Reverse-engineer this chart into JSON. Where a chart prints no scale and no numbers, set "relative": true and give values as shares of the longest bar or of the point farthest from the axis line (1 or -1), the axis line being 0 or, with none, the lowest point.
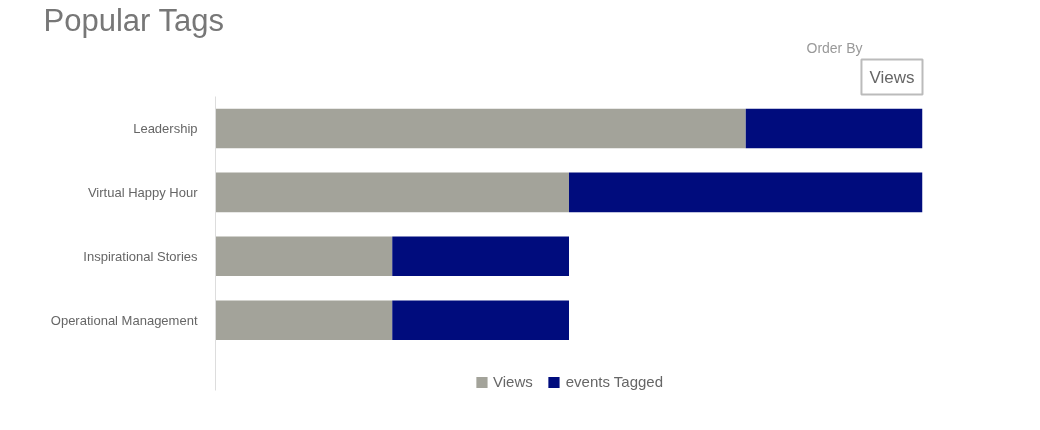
{
  "chart_data": {
    "type": "bar",
    "title": "Popular Tags",
    "orientation": "horizontal",
    "stacked": true,
    "relative": true,
    "legend": "bottom",
    "categories": [
      "Leadership",
      "Virtual Happy Hour",
      "Inspirational Stories",
      "Operational Management"
    ],
    "series": [
      {
        "name": "Views",
        "color": "#a3a39a",
        "values": [
          0.75,
          0.5,
          0.25,
          0.25
        ]
      },
      {
        "name": "events Tagged",
        "color": "#000c7d",
        "values": [
          0.25,
          0.5,
          0.25,
          0.25
        ]
      }
    ],
    "annotations": [
      "Order By",
      "Views"
    ]
  }
}
